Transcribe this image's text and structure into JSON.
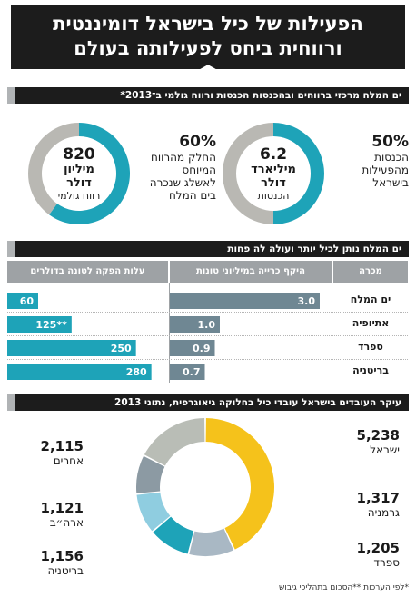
{
  "title": {
    "line1": "הפעילות של כיל בישראל דומיננטית",
    "line2": "ורווחית ביחס לפעילותה בעולם"
  },
  "section1": {
    "header": "ים המלח מרכזי ברווחים ובהכנסות הכנסות ורווח גולמי ב־2013*",
    "donut_revenue": {
      "center_value": "6.2",
      "center_unit1": "מיליארד",
      "center_unit2": "דולר",
      "center_caption": "הכנסות",
      "share": 0.5,
      "pct": "50%",
      "desc": [
        "הכנסות",
        "מהפעילות",
        "בישראל"
      ]
    },
    "donut_profit": {
      "center_value": "820",
      "center_unit1": "מיליון",
      "center_unit2": "דולר",
      "center_caption": "רווח גולמי",
      "share": 0.6,
      "pct": "60%",
      "desc": [
        "החלק מהרווח",
        "המיוחס",
        "לאשלג שנכרה",
        "בים המלח"
      ]
    }
  },
  "section2": {
    "header": "ים המלח נותן לכיל יותר ועולה לה פחות",
    "col_site": "מכרה",
    "col_mining": "היקף כרייה במיליוני טונות",
    "col_cost": "עלות הפקה לטונה בדולרים",
    "rows": [
      {
        "site": "ים המלח",
        "mining": 3.0,
        "mining_label": "3.0",
        "cost": 60,
        "cost_label": "60"
      },
      {
        "site": "אתיופיה",
        "mining": 1.0,
        "mining_label": "1.0",
        "cost": 125,
        "cost_label": "125**"
      },
      {
        "site": "ספרד",
        "mining": 0.9,
        "mining_label": "0.9",
        "cost": 250,
        "cost_label": "250"
      },
      {
        "site": "בריטניה",
        "mining": 0.7,
        "mining_label": "0.7",
        "cost": 280,
        "cost_label": "280"
      }
    ]
  },
  "section3": {
    "header": "עיקר העובדים בישראל עובדי כיל בחלוקה גיאוגרפית, נתוני 2013",
    "segments": [
      {
        "label": "ישראל",
        "value_label": "5,238",
        "value": 5238,
        "color": "#f5c21b"
      },
      {
        "label": "גרמניה",
        "value_label": "1,317",
        "value": 1317,
        "color": "#a9b8c4"
      },
      {
        "label": "ספרד",
        "value_label": "1,205",
        "value": 1205,
        "color": "#1ea3b8"
      },
      {
        "label": "בריטניה",
        "value_label": "1,156",
        "value": 1156,
        "color": "#8fcde0"
      },
      {
        "label": "ארה״ב",
        "value_label": "1,121",
        "value": 1121,
        "color": "#8c9aa3"
      },
      {
        "label": "אחרים",
        "value_label": "2,115",
        "value": 2115,
        "color": "#b9bdb6"
      }
    ]
  },
  "footnote": "*לפי הערכות **הסכום בתהליכי גיבוש",
  "colors": {
    "teal": "#1ea3b8",
    "slate": "#6f8793",
    "gray": "#b9b8b3",
    "dark": "#1c1c1c"
  },
  "chart_data": [
    {
      "type": "pie",
      "categories": [
        "בישראל",
        "other"
      ],
      "values": [
        50,
        50
      ]
    },
    {
      "type": "pie",
      "categories": [
        "ים המלח",
        "other"
      ],
      "values": [
        60,
        40
      ]
    },
    {
      "type": "bar",
      "title": "ים המלח נותן לכיל יותר ועולה לה פחות",
      "categories": [
        "ים המלח",
        "אתיופיה",
        "ספרד",
        "בריטניה"
      ],
      "series": [
        {
          "name": "היקף כרייה במיליוני טונות",
          "values": [
            3.0,
            1.0,
            0.9,
            0.7
          ]
        },
        {
          "name": "עלות הפקה לטונה בדולרים",
          "values": [
            60,
            125,
            250,
            280
          ]
        }
      ]
    },
    {
      "type": "pie",
      "title": "עיקר העובדים בישראל",
      "categories": [
        "ישראל",
        "גרמניה",
        "ספרד",
        "בריטניה",
        "ארה״ב",
        "אחרים"
      ],
      "values": [
        5238,
        1317,
        1205,
        1156,
        1121,
        2115
      ]
    }
  ]
}
